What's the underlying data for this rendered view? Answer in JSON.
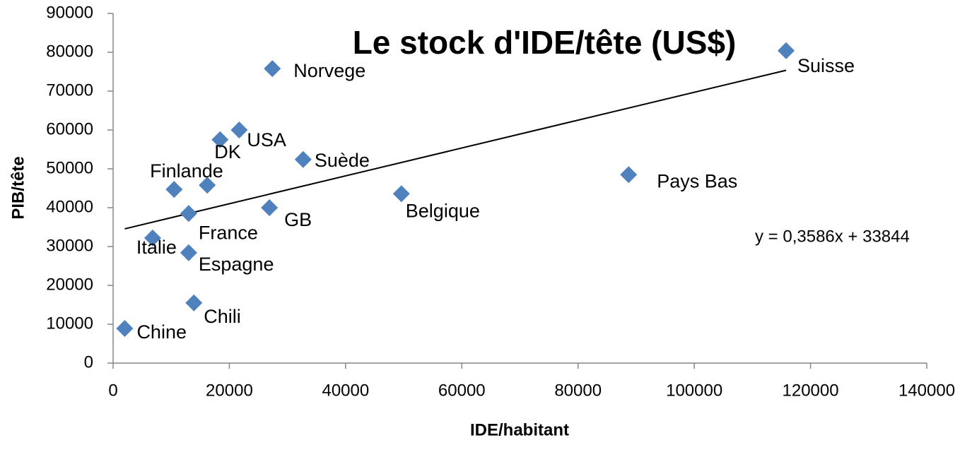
{
  "chart_data": {
    "type": "scatter",
    "title": "Le stock  d'IDE/tête (US$)",
    "x_label": "IDE/habitant",
    "y_label": "PIB/tête",
    "color": "#4f81bd",
    "xlim": [
      0,
      140000
    ],
    "xticks": [
      0,
      20000,
      40000,
      60000,
      80000,
      100000,
      120000,
      140000
    ],
    "ylim": [
      0,
      90000
    ],
    "yticks": [
      0,
      10000,
      20000,
      30000,
      40000,
      50000,
      60000,
      70000,
      80000,
      90000
    ],
    "grid": false,
    "point_labels": [
      "Chine",
      "Italie",
      null,
      "Finlande",
      "France",
      "Espagne",
      "Chili",
      "DK",
      "USA",
      "Norvege",
      "Suède",
      "GB",
      "Belgique",
      "Pays Bas",
      "Suisse"
    ],
    "x": [
      2000,
      6800,
      10500,
      16200,
      13000,
      13000,
      13900,
      18400,
      21700,
      27400,
      32700,
      26900,
      49600,
      88700,
      115800
    ],
    "values": [
      8900,
      32200,
      44700,
      45800,
      38500,
      28400,
      15500,
      57500,
      60000,
      75800,
      52400,
      40000,
      43600,
      48500,
      80400
    ],
    "trendline": {
      "slope": 0.3586,
      "intercept": 33844,
      "label": "y = 0,3586x + 33844"
    }
  }
}
